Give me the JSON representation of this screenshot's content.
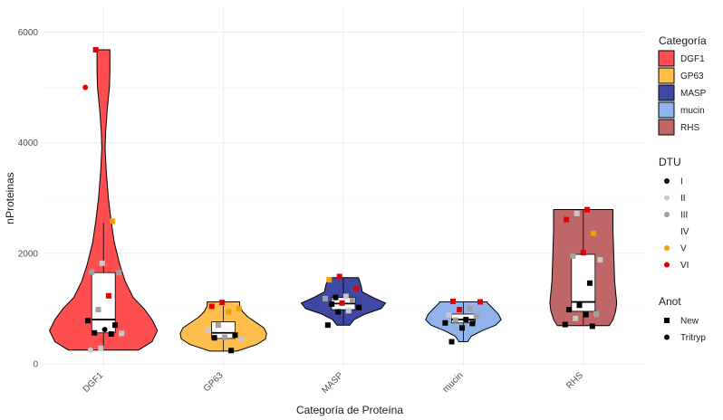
{
  "chart_data": {
    "type": "violin",
    "xlabel": "Categoría de Proteína",
    "ylabel": "nProteinas",
    "ylim": [
      -50,
      6450
    ],
    "y_ticks": [
      0,
      2000,
      4000,
      6000
    ],
    "grid": true,
    "categories": [
      "DGF1",
      "GP63",
      "MASP",
      "mucin",
      "RHS"
    ],
    "category_colors": {
      "DGF1": "#ff4e50",
      "GP63": "#fdbe4e",
      "MASP": "#3f48a3",
      "mucin": "#92b2ec",
      "RHS": "#be6668"
    },
    "violins": [
      {
        "category": "DGF1",
        "min": 250,
        "max": 5680,
        "box": {
          "q1": 560,
          "median": 800,
          "q3": 1650,
          "lower": 250,
          "upper": 2550
        },
        "profile": [
          [
            250,
            0.65
          ],
          [
            400,
            0.9
          ],
          [
            600,
            1.0
          ],
          [
            800,
            0.9
          ],
          [
            1000,
            0.75
          ],
          [
            1200,
            0.55
          ],
          [
            1500,
            0.4
          ],
          [
            1800,
            0.3
          ],
          [
            2200,
            0.2
          ],
          [
            2600,
            0.14
          ],
          [
            3000,
            0.09
          ],
          [
            3500,
            0.05
          ],
          [
            3900,
            0.03
          ],
          [
            4200,
            0.04
          ],
          [
            4600,
            0.07
          ],
          [
            5000,
            0.11
          ],
          [
            5300,
            0.12
          ],
          [
            5680,
            0.12
          ]
        ]
      },
      {
        "category": "GP63",
        "min": 230,
        "max": 1120,
        "box": {
          "q1": 460,
          "median": 560,
          "q3": 760,
          "lower": 230,
          "upper": 1050
        },
        "profile": [
          [
            230,
            0.25
          ],
          [
            350,
            0.62
          ],
          [
            450,
            0.78
          ],
          [
            550,
            0.8
          ],
          [
            650,
            0.75
          ],
          [
            750,
            0.6
          ],
          [
            850,
            0.45
          ],
          [
            950,
            0.35
          ],
          [
            1050,
            0.3
          ],
          [
            1120,
            0.3
          ]
        ]
      },
      {
        "category": "MASP",
        "min": 700,
        "max": 1560,
        "box": {
          "q1": 980,
          "median": 1090,
          "q3": 1200,
          "lower": 700,
          "upper": 1560
        },
        "profile": [
          [
            700,
            0.12
          ],
          [
            800,
            0.2
          ],
          [
            900,
            0.4
          ],
          [
            1000,
            0.7
          ],
          [
            1100,
            0.78
          ],
          [
            1200,
            0.55
          ],
          [
            1300,
            0.35
          ],
          [
            1400,
            0.33
          ],
          [
            1500,
            0.3
          ],
          [
            1560,
            0.28
          ]
        ]
      },
      {
        "category": "mucin",
        "min": 400,
        "max": 1120,
        "box": {
          "q1": 740,
          "median": 800,
          "q3": 900,
          "lower": 400,
          "upper": 1120
        },
        "profile": [
          [
            400,
            0.08
          ],
          [
            500,
            0.15
          ],
          [
            600,
            0.35
          ],
          [
            700,
            0.6
          ],
          [
            800,
            0.7
          ],
          [
            900,
            0.65
          ],
          [
            1000,
            0.55
          ],
          [
            1100,
            0.45
          ],
          [
            1120,
            0.44
          ]
        ]
      },
      {
        "category": "RHS",
        "min": 690,
        "max": 2790,
        "box": {
          "q1": 950,
          "median": 1120,
          "q3": 1980,
          "lower": 690,
          "upper": 2790
        },
        "profile": [
          [
            690,
            0.48
          ],
          [
            800,
            0.55
          ],
          [
            950,
            0.6
          ],
          [
            1100,
            0.62
          ],
          [
            1300,
            0.6
          ],
          [
            1500,
            0.58
          ],
          [
            1800,
            0.57
          ],
          [
            2100,
            0.56
          ],
          [
            2400,
            0.55
          ],
          [
            2790,
            0.55
          ]
        ]
      }
    ],
    "points": [
      {
        "category": "DGF1",
        "y": 5680,
        "dtu": "VI",
        "anot": "New"
      },
      {
        "category": "DGF1",
        "y": 5000,
        "dtu": "VI",
        "anot": "Tritryp"
      },
      {
        "category": "DGF1",
        "y": 2580,
        "dtu": "V",
        "anot": "New"
      },
      {
        "category": "DGF1",
        "y": 1820,
        "dtu": "II",
        "anot": "New"
      },
      {
        "category": "DGF1",
        "y": 1660,
        "dtu": "III",
        "anot": "New"
      },
      {
        "category": "DGF1",
        "y": 1650,
        "dtu": "III",
        "anot": "New"
      },
      {
        "category": "DGF1",
        "y": 1230,
        "dtu": "VI",
        "anot": "New"
      },
      {
        "category": "DGF1",
        "y": 980,
        "dtu": "III",
        "anot": "New"
      },
      {
        "category": "DGF1",
        "y": 780,
        "dtu": "I",
        "anot": "New"
      },
      {
        "category": "DGF1",
        "y": 700,
        "dtu": "I",
        "anot": "New"
      },
      {
        "category": "DGF1",
        "y": 620,
        "dtu": "I",
        "anot": "Tritryp"
      },
      {
        "category": "DGF1",
        "y": 560,
        "dtu": "I",
        "anot": "New"
      },
      {
        "category": "DGF1",
        "y": 550,
        "dtu": "II",
        "anot": "New"
      },
      {
        "category": "DGF1",
        "y": 540,
        "dtu": "I",
        "anot": "New"
      },
      {
        "category": "DGF1",
        "y": 280,
        "dtu": "II",
        "anot": "New"
      },
      {
        "category": "DGF1",
        "y": 250,
        "dtu": "II",
        "anot": "Tritryp"
      },
      {
        "category": "GP63",
        "y": 1110,
        "dtu": "VI",
        "anot": "New"
      },
      {
        "category": "GP63",
        "y": 1040,
        "dtu": "VI",
        "anot": "New"
      },
      {
        "category": "GP63",
        "y": 1000,
        "dtu": "V",
        "anot": "New"
      },
      {
        "category": "GP63",
        "y": 940,
        "dtu": "V",
        "anot": "New"
      },
      {
        "category": "GP63",
        "y": 700,
        "dtu": "III",
        "anot": "New"
      },
      {
        "category": "GP63",
        "y": 620,
        "dtu": "II",
        "anot": "New"
      },
      {
        "category": "GP63",
        "y": 520,
        "dtu": "I",
        "anot": "New"
      },
      {
        "category": "GP63",
        "y": 480,
        "dtu": "III",
        "anot": "New"
      },
      {
        "category": "GP63",
        "y": 470,
        "dtu": "I",
        "anot": "New"
      },
      {
        "category": "GP63",
        "y": 440,
        "dtu": "II",
        "anot": "New"
      },
      {
        "category": "GP63",
        "y": 240,
        "dtu": "I",
        "anot": "New"
      },
      {
        "category": "MASP",
        "y": 1580,
        "dtu": "VI",
        "anot": "New"
      },
      {
        "category": "MASP",
        "y": 1520,
        "dtu": "V",
        "anot": "New"
      },
      {
        "category": "MASP",
        "y": 1360,
        "dtu": "VI",
        "anot": "New"
      },
      {
        "category": "MASP",
        "y": 1220,
        "dtu": "II",
        "anot": "New"
      },
      {
        "category": "MASP",
        "y": 1200,
        "dtu": "I",
        "anot": "New"
      },
      {
        "category": "MASP",
        "y": 1180,
        "dtu": "III",
        "anot": "New"
      },
      {
        "category": "MASP",
        "y": 1150,
        "dtu": "III",
        "anot": "New"
      },
      {
        "category": "MASP",
        "y": 1100,
        "dtu": "VI",
        "anot": "New"
      },
      {
        "category": "MASP",
        "y": 1080,
        "dtu": "I",
        "anot": "New"
      },
      {
        "category": "MASP",
        "y": 1020,
        "dtu": "I",
        "anot": "New"
      },
      {
        "category": "MASP",
        "y": 960,
        "dtu": "II",
        "anot": "New"
      },
      {
        "category": "MASP",
        "y": 940,
        "dtu": "I",
        "anot": "New"
      },
      {
        "category": "MASP",
        "y": 700,
        "dtu": "I",
        "anot": "New"
      },
      {
        "category": "mucin",
        "y": 1130,
        "dtu": "VI",
        "anot": "New"
      },
      {
        "category": "mucin",
        "y": 1120,
        "dtu": "VI",
        "anot": "New"
      },
      {
        "category": "mucin",
        "y": 1000,
        "dtu": "III",
        "anot": "New"
      },
      {
        "category": "mucin",
        "y": 980,
        "dtu": "VI",
        "anot": "New"
      },
      {
        "category": "mucin",
        "y": 880,
        "dtu": "II",
        "anot": "New"
      },
      {
        "category": "mucin",
        "y": 860,
        "dtu": "III",
        "anot": "New"
      },
      {
        "category": "mucin",
        "y": 800,
        "dtu": "I",
        "anot": "New"
      },
      {
        "category": "mucin",
        "y": 790,
        "dtu": "III",
        "anot": "New"
      },
      {
        "category": "mucin",
        "y": 740,
        "dtu": "I",
        "anot": "New"
      },
      {
        "category": "mucin",
        "y": 730,
        "dtu": "I",
        "anot": "New"
      },
      {
        "category": "mucin",
        "y": 650,
        "dtu": "I",
        "anot": "New"
      },
      {
        "category": "mucin",
        "y": 400,
        "dtu": "I",
        "anot": "New"
      },
      {
        "category": "RHS",
        "y": 2790,
        "dtu": "VI",
        "anot": "New"
      },
      {
        "category": "RHS",
        "y": 2720,
        "dtu": "II",
        "anot": "New"
      },
      {
        "category": "RHS",
        "y": 2610,
        "dtu": "VI",
        "anot": "New"
      },
      {
        "category": "RHS",
        "y": 2360,
        "dtu": "V",
        "anot": "New"
      },
      {
        "category": "RHS",
        "y": 2010,
        "dtu": "VI",
        "anot": "New"
      },
      {
        "category": "RHS",
        "y": 1950,
        "dtu": "III",
        "anot": "New"
      },
      {
        "category": "RHS",
        "y": 1880,
        "dtu": "II",
        "anot": "New"
      },
      {
        "category": "RHS",
        "y": 1460,
        "dtu": "I",
        "anot": "New"
      },
      {
        "category": "RHS",
        "y": 1060,
        "dtu": "I",
        "anot": "New"
      },
      {
        "category": "RHS",
        "y": 980,
        "dtu": "I",
        "anot": "New"
      },
      {
        "category": "RHS",
        "y": 900,
        "dtu": "III",
        "anot": "New"
      },
      {
        "category": "RHS",
        "y": 890,
        "dtu": "I",
        "anot": "New"
      },
      {
        "category": "RHS",
        "y": 820,
        "dtu": "II",
        "anot": "New"
      },
      {
        "category": "RHS",
        "y": 710,
        "dtu": "I",
        "anot": "New"
      },
      {
        "category": "RHS",
        "y": 680,
        "dtu": "I",
        "anot": "New"
      }
    ],
    "legends": [
      {
        "title": "Categoría",
        "type": "fill",
        "entries": [
          {
            "label": "DGF1",
            "color": "#ff4e50"
          },
          {
            "label": "GP63",
            "color": "#fdbe4e"
          },
          {
            "label": "MASP",
            "color": "#3f48a3"
          },
          {
            "label": "mucin",
            "color": "#92b2ec"
          },
          {
            "label": "RHS",
            "color": "#be6668"
          }
        ]
      },
      {
        "title": "DTU",
        "type": "point",
        "entries": [
          {
            "label": "I",
            "color": "#000000"
          },
          {
            "label": "II",
            "color": "#c8c8c8"
          },
          {
            "label": "III",
            "color": "#a0a0a0"
          },
          {
            "label": "IV",
            "color": "#ffffff"
          },
          {
            "label": "V",
            "color": "#f0a000"
          },
          {
            "label": "VI",
            "color": "#e00000"
          }
        ]
      },
      {
        "title": "Anot",
        "type": "shape",
        "entries": [
          {
            "label": "New",
            "shape": "square"
          },
          {
            "label": "Tritryp",
            "shape": "circle"
          }
        ]
      }
    ]
  }
}
